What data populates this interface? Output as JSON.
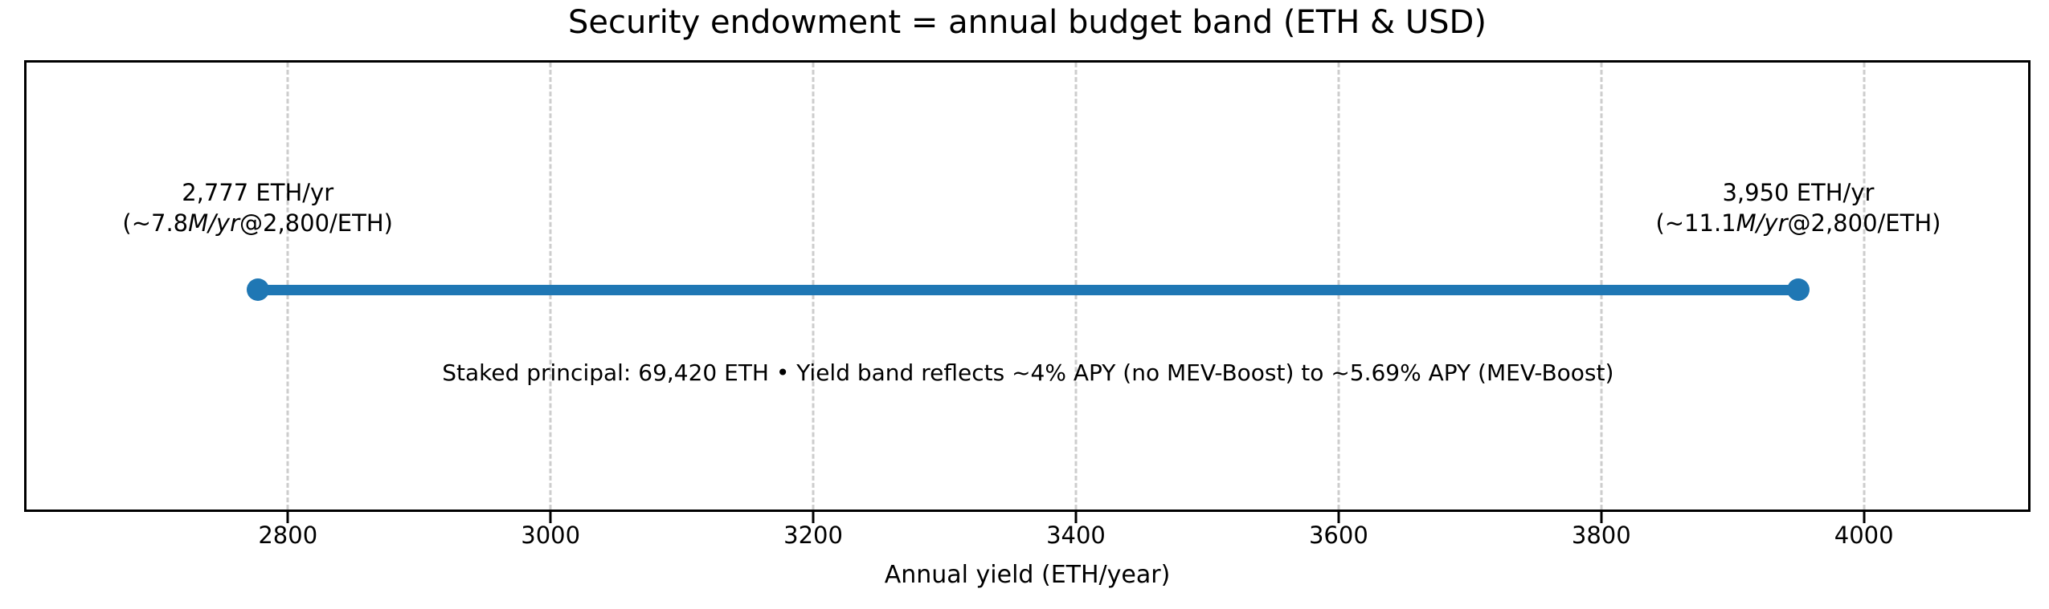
{
  "colors": {
    "band": "#1f77b4",
    "grid": "#cdcdcd",
    "frame": "#000000",
    "background": "#ffffff",
    "text": "#000000"
  },
  "chart_data": {
    "type": "dumbbell-range",
    "title": "Security endowment = annual budget band (ETH & USD)",
    "xlabel": "Annual yield (ETH/year)",
    "ylabel": "",
    "xlim": [
      2601,
      4125
    ],
    "grid": true,
    "grid_style": "dashed",
    "x_ticks": [
      2800,
      3000,
      3200,
      3400,
      3600,
      3800,
      4000
    ],
    "band": {
      "min": 2777,
      "max": 3950
    },
    "point_labels": {
      "min": {
        "line1": "2,777 ETH/yr",
        "line2_prefix": "(~7.8",
        "line2_italic": "M/yr",
        "line2_suffix": "@2,800/ETH)"
      },
      "max": {
        "line1": "3,950 ETH/yr",
        "line2_prefix": "(~11.1",
        "line2_italic": "M/yr",
        "line2_suffix": "@2,800/ETH)"
      }
    },
    "annotation": "Staked principal: 69,420 ETH • Yield band reflects ~4% APY (no MEV-Boost) to ~5.69% APY (MEV-Boost)"
  }
}
